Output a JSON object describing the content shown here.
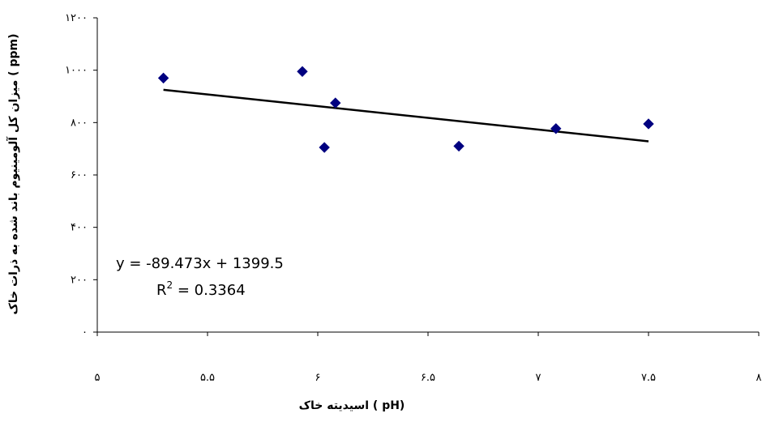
{
  "chart_data": {
    "type": "scatter",
    "xlabel": "اسیدیته خاک ( pH)",
    "ylabel": "میزان کل آلومینیوم باند شده به ذرات خاک ( ppm)",
    "xlim": [
      5,
      8
    ],
    "ylim": [
      0,
      1200
    ],
    "x_ticks": [
      5,
      5.5,
      6,
      6.5,
      7,
      7.5,
      8
    ],
    "x_tick_labels": [
      "۵",
      "۵.۵",
      "۶",
      "۶.۵",
      "۷",
      "۷.۵",
      "۸"
    ],
    "y_ticks": [
      0,
      200,
      400,
      600,
      800,
      1000,
      1200
    ],
    "y_tick_labels": [
      "۰",
      "۲۰۰",
      "۴۰۰",
      "۶۰۰",
      "۸۰۰",
      "۱۰۰۰",
      "۱۲۰۰"
    ],
    "grid": false,
    "legend": false,
    "marker_color": "#000080",
    "trendline_color": "#000000",
    "series": [
      {
        "x": [
          5.3,
          5.93,
          6.03,
          6.08,
          6.64,
          7.08,
          7.5
        ],
        "y": [
          970,
          995,
          705,
          875,
          710,
          777,
          795
        ]
      }
    ],
    "trendline": {
      "slope": -89.473,
      "intercept": 1399.5,
      "x_range": [
        5.3,
        7.5
      ]
    },
    "annotations": {
      "equation": "y = -89.473x + 1399.5",
      "r2_prefix": "R",
      "r2_sup": "2",
      "r2_value": " = 0.3364"
    }
  }
}
